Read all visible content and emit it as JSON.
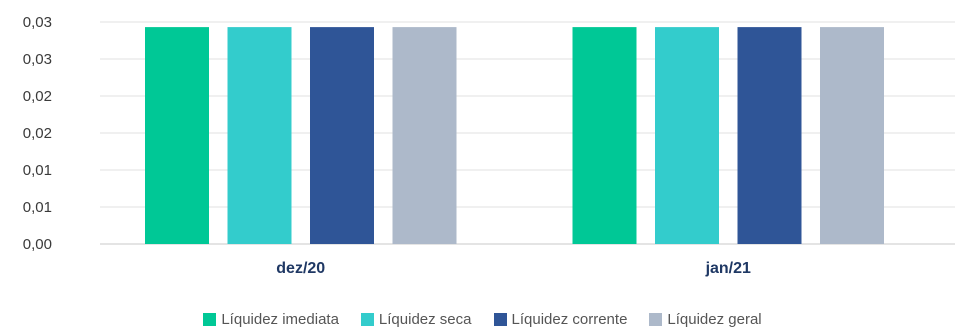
{
  "chart_data": {
    "type": "bar",
    "categories": [
      "dez/20",
      "jan/21"
    ],
    "series": [
      {
        "name": "Líquidez imediata",
        "color": "#00c896",
        "values": [
          0.034,
          0.034
        ]
      },
      {
        "name": "Líquidez seca",
        "color": "#33cccc",
        "values": [
          0.034,
          0.034
        ]
      },
      {
        "name": "Líquidez corrente",
        "color": "#2f5597",
        "values": [
          0.034,
          0.034
        ]
      },
      {
        "name": "Líquidez geral",
        "color": "#adb9ca",
        "values": [
          0.034,
          0.034
        ]
      }
    ],
    "y_ticks": [
      {
        "value": 0.0,
        "label": "0,00"
      },
      {
        "value": 0.0058,
        "label": "0,01"
      },
      {
        "value": 0.0116,
        "label": "0,01"
      },
      {
        "value": 0.0174,
        "label": "0,02"
      },
      {
        "value": 0.0232,
        "label": "0,02"
      },
      {
        "value": 0.029,
        "label": "0,03"
      },
      {
        "value": 0.0348,
        "label": "0,03"
      }
    ],
    "ylim": [
      0,
      0.0348
    ],
    "grid": true,
    "legend_position": "bottom"
  }
}
